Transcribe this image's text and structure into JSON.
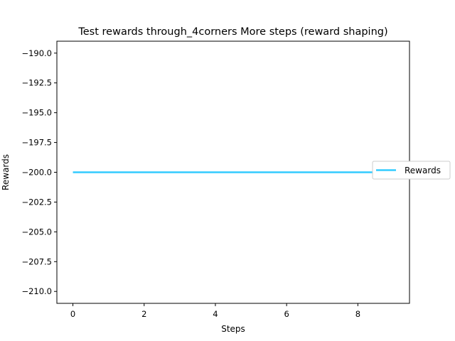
{
  "chart_data": {
    "type": "line",
    "title": "Test rewards through_4corners More steps (reward shaping)",
    "xlabel": "Steps",
    "ylabel": "Rewards",
    "xlim": [
      -0.45,
      9.45
    ],
    "ylim": [
      -211,
      -189
    ],
    "x_ticks": [
      0,
      2,
      4,
      6,
      8
    ],
    "x_tick_labels": [
      "0",
      "2",
      "4",
      "6",
      "8"
    ],
    "y_ticks": [
      -190.0,
      -192.5,
      -195.0,
      -197.5,
      -200.0,
      -202.5,
      -205.0,
      -207.5,
      -210.0
    ],
    "y_tick_labels": [
      "−190.0",
      "−192.5",
      "−195.0",
      "−197.5",
      "−200.0",
      "−202.5",
      "−205.0",
      "−207.5",
      "−210.0"
    ],
    "grid": false,
    "legend_position": "right",
    "series": [
      {
        "name": "Rewards",
        "color": "#33ccff",
        "x": [
          0,
          1,
          2,
          3,
          4,
          5,
          6,
          7,
          8,
          9
        ],
        "y": [
          -200,
          -200,
          -200,
          -200,
          -200,
          -200,
          -200,
          -200,
          -200,
          -200
        ]
      }
    ]
  }
}
